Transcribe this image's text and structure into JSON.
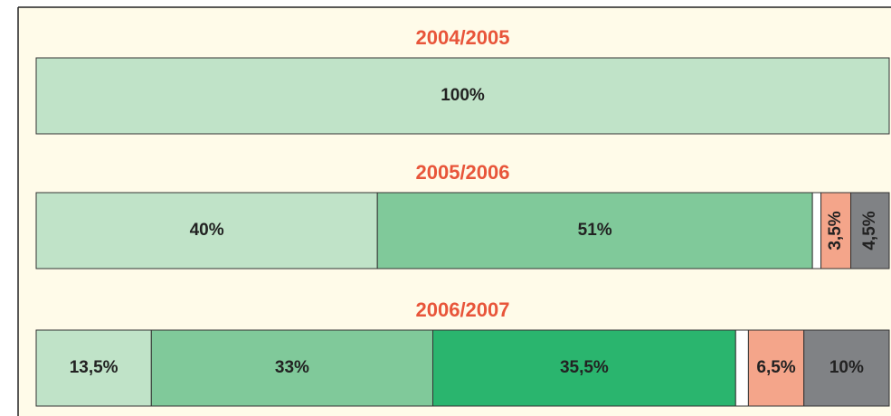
{
  "chart_data": [
    {
      "type": "bar",
      "orientation": "horizontal",
      "stacked": true,
      "title": "2004/2005",
      "xlim": [
        0,
        100
      ],
      "series": [
        {
          "color": "#c0e3c8",
          "values": [
            100
          ],
          "value_labels": [
            "100%"
          ]
        }
      ]
    },
    {
      "type": "bar",
      "orientation": "horizontal",
      "stacked": true,
      "title": "2005/2006",
      "xlim": [
        0,
        100
      ],
      "series": [
        {
          "color": "#c0e3c8",
          "values": [
            40
          ],
          "value_labels": [
            "40%"
          ]
        },
        {
          "color": "#80c99a",
          "values": [
            51
          ],
          "value_labels": [
            "51%"
          ]
        },
        {
          "color": "#ffffff",
          "values": [
            1
          ]
        },
        {
          "color": "#f4a58a",
          "values": [
            3.5
          ],
          "value_labels": [
            "3,5%"
          ]
        },
        {
          "color": "#808285",
          "values": [
            4.5
          ],
          "value_labels": [
            "4,5%"
          ]
        }
      ]
    },
    {
      "type": "bar",
      "orientation": "horizontal",
      "stacked": true,
      "title": "2006/2007",
      "xlim": [
        0,
        100
      ],
      "series": [
        {
          "color": "#c0e3c8",
          "values": [
            13.5
          ],
          "value_labels": [
            "13,5%"
          ]
        },
        {
          "color": "#80c99a",
          "values": [
            33
          ],
          "value_labels": [
            "33%"
          ]
        },
        {
          "color": "#2ab56e",
          "values": [
            35.5
          ],
          "value_labels": [
            "35,5%"
          ]
        },
        {
          "color": "#ffffff",
          "values": [
            1.5
          ]
        },
        {
          "color": "#f4a58a",
          "values": [
            6.5
          ],
          "value_labels": [
            "6,5%"
          ]
        },
        {
          "color": "#808285",
          "values": [
            10
          ],
          "value_labels": [
            "10%"
          ]
        }
      ]
    }
  ]
}
